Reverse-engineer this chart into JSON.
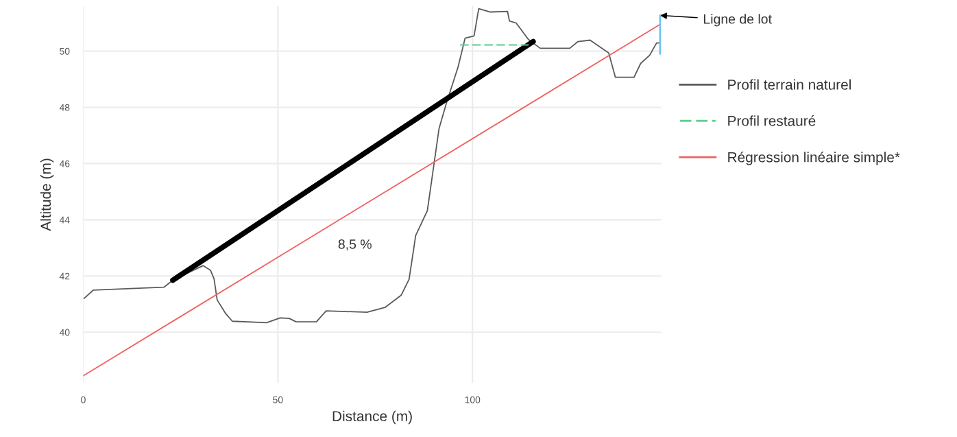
{
  "chart_data": {
    "type": "line",
    "xlabel": "Distance (m)",
    "ylabel": "Altitude (m)",
    "xlim": [
      0,
      148.5
    ],
    "ylim": [
      38.2,
      51.6
    ],
    "xticks": [
      0,
      50,
      100
    ],
    "yticks": [
      40,
      42,
      44,
      46,
      48,
      50
    ],
    "grid": true,
    "legend": "right",
    "line_style": "solid",
    "series": [
      {
        "name": "Profil terrain naturel",
        "color": "#5a5a5a",
        "x": [
          0.2,
          2.6,
          20.7,
          23.0,
          30.8,
          32.7,
          33.6,
          34.4,
          36.6,
          38.3,
          47.1,
          50.6,
          52.9,
          54.7,
          59.9,
          62.4,
          72.9,
          77.5,
          81.7,
          83.7,
          84.5,
          85.4,
          88.4,
          91.4,
          93.3,
          96.3,
          98.1,
          100.4,
          101.6,
          104.6,
          109.0,
          109.5,
          111.2,
          114.4,
          117.4,
          125.0,
          127.1,
          130.2,
          135.0,
          136.7,
          141.5,
          143.2,
          145.5,
          147.3,
          148.2
        ],
        "values": [
          41.2,
          41.5,
          41.6,
          41.85,
          42.37,
          42.2,
          41.9,
          41.15,
          40.66,
          40.39,
          40.34,
          40.51,
          40.49,
          40.37,
          40.37,
          40.76,
          40.71,
          40.88,
          41.32,
          41.88,
          42.6,
          43.44,
          44.32,
          47.24,
          48.15,
          49.44,
          50.46,
          50.54,
          51.51,
          51.39,
          51.41,
          51.07,
          51.0,
          50.41,
          50.1,
          50.1,
          50.34,
          50.39,
          49.93,
          49.07,
          49.07,
          49.56,
          49.85,
          50.29,
          50.29
        ]
      },
      {
        "name": "Profil restauré",
        "color": "#5ccc8a",
        "line_style": "dashed",
        "x": [
          96.8,
          114.4
        ],
        "values": [
          50.22,
          50.22
        ]
      },
      {
        "name": "Régression linéaire simple*",
        "color": "#f06060",
        "x": [
          0,
          148.2
        ],
        "values": [
          38.45,
          50.95
        ]
      },
      {
        "color": "#000000",
        "x": [
          23.0,
          115.6
        ],
        "values": [
          41.85,
          50.34
        ]
      },
      {
        "color": "#6cc4f0",
        "x": [
          148.2,
          148.2
        ],
        "values": [
          49.9,
          51.27
        ]
      }
    ],
    "annotations": [
      "8,5 %",
      "Ligne de lot"
    ]
  }
}
